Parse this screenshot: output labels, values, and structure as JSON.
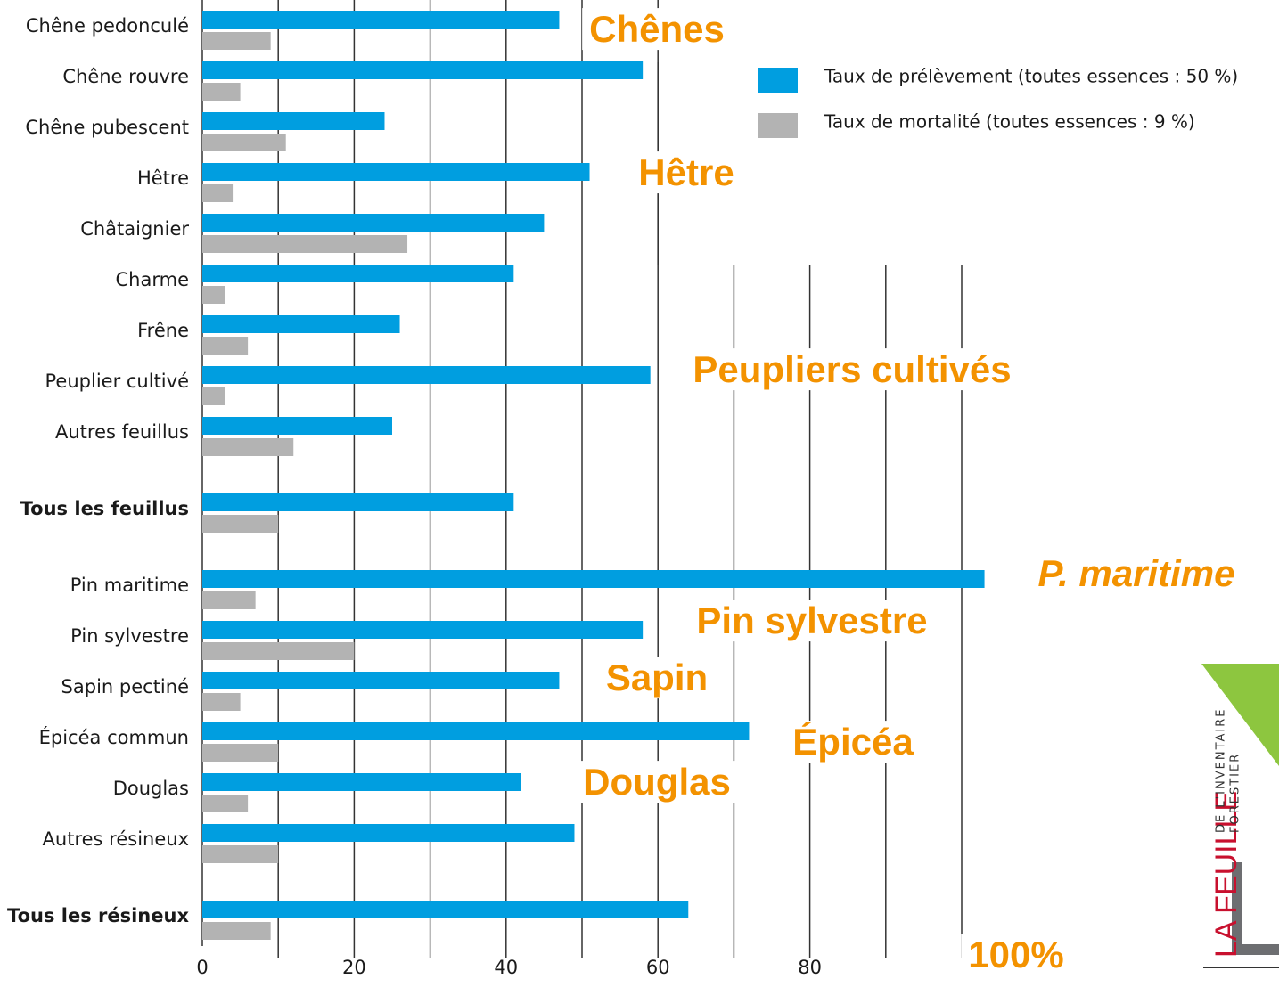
{
  "chart_data": {
    "type": "hbar",
    "categories": [
      "Chêne pedonculé",
      "Chêne rouvre",
      "Chêne pubescent",
      "Hêtre",
      "Châtaignier",
      "Charme",
      "Frêne",
      "Peuplier cultivé",
      "Autres feuillus",
      "Tous les feuillus",
      "Pin maritime",
      "Pin sylvestre",
      "Sapin pectiné",
      "Épicéa commun",
      "Douglas",
      "Autres résineux",
      "Tous les résineux"
    ],
    "series": [
      {
        "name": "Taux de prélèvement (toutes essences : 50 %)",
        "color": "#009ee0",
        "values": [
          47,
          58,
          24,
          51,
          45,
          41,
          26,
          59,
          25,
          41,
          103,
          58,
          47,
          72,
          42,
          49,
          64
        ]
      },
      {
        "name": "Taux de mortalité (toutes essences : 9 %)",
        "color": "#b3b3b3",
        "values": [
          9,
          5,
          11,
          4,
          27,
          3,
          6,
          3,
          12,
          10,
          7,
          20,
          5,
          10,
          6,
          10,
          9
        ]
      }
    ],
    "xlim": [
      0,
      100
    ],
    "xticks": [
      0,
      20,
      40,
      60,
      80
    ],
    "xgrid": [
      10,
      20,
      30,
      40,
      50,
      60,
      70,
      80,
      90,
      100
    ],
    "annotations": [
      "Chênes",
      "Hêtre",
      "Peupliers cultivés",
      "P. maritime",
      "Pin sylvestre",
      "Sapin",
      "Épicéa",
      "Douglas",
      "100%"
    ],
    "logo": {
      "title": "LA FEUILLE",
      "line1": "DE L'INVENTAIRE",
      "line2": "FORESTIER"
    }
  }
}
